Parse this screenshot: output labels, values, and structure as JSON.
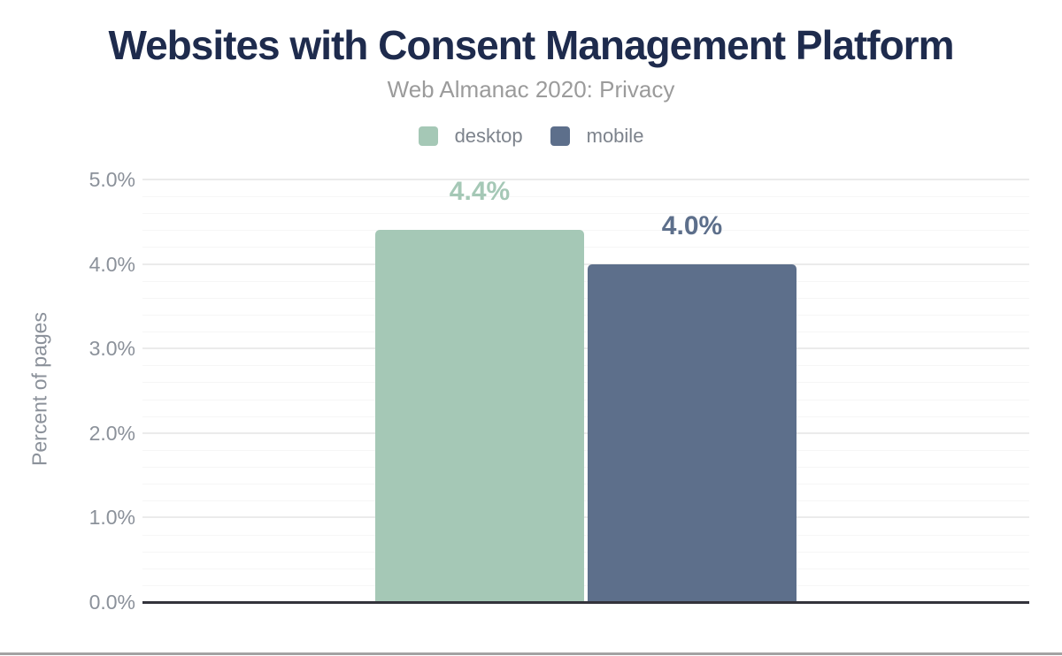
{
  "chart_data": {
    "type": "bar",
    "title": "Websites with Consent Management Platform",
    "subtitle": "Web Almanac 2020: Privacy",
    "ylabel": "Percent of pages",
    "ylim": [
      0,
      5
    ],
    "ytick_major_step": 1.0,
    "ytick_minor_step": 0.2,
    "yticks": [
      {
        "value": 0,
        "label": "0.0%"
      },
      {
        "value": 1,
        "label": "1.0%"
      },
      {
        "value": 2,
        "label": "2.0%"
      },
      {
        "value": 3,
        "label": "3.0%"
      },
      {
        "value": 4,
        "label": "4.0%"
      },
      {
        "value": 5,
        "label": "5.0%"
      }
    ],
    "grid": "horizontal-minor-and-major",
    "legend_position": "top-center",
    "series": [
      {
        "name": "desktop",
        "value": 4.4,
        "label": "4.4%",
        "color": "#a5c8b6"
      },
      {
        "name": "mobile",
        "value": 4.0,
        "label": "4.0%",
        "color": "#5d6f8b"
      }
    ]
  },
  "colors": {
    "title": "#1e2b4d",
    "subtitle": "#9b9b9b",
    "axis_text": "#8b919a",
    "legend_text": "#7d838c",
    "axis_line": "#33333b",
    "gridline_major": "#ebebeb",
    "gridline_minor": "#f6f6f6",
    "desktop_bar": "#a5c8b6",
    "mobile_bar": "#5d6f8b",
    "bottom_divider": "#a2a2a2"
  }
}
